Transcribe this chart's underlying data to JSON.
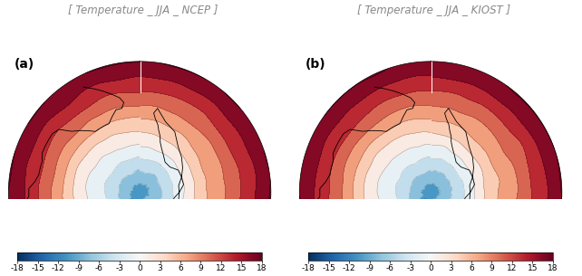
{
  "title_left": "[ Temperature _ JJA _ NCEP ]",
  "title_right": "[ Temperature _ JJA _ KIOST ]",
  "label_a": "(a)",
  "label_b": "(b)",
  "colorbar_ticks": [
    -18,
    -15,
    -12,
    -9,
    -6,
    -3,
    0,
    3,
    6,
    9,
    12,
    15,
    18
  ],
  "vmin": -18,
  "vmax": 18,
  "cmap": "RdBu_r",
  "contour_interval": 3,
  "title_fontsize": 8.5,
  "label_fontsize": 10,
  "tick_fontsize": 6.5,
  "title_color": "#888888",
  "fig_bg": "#ffffff",
  "ax_bg": "#e8e8e8"
}
